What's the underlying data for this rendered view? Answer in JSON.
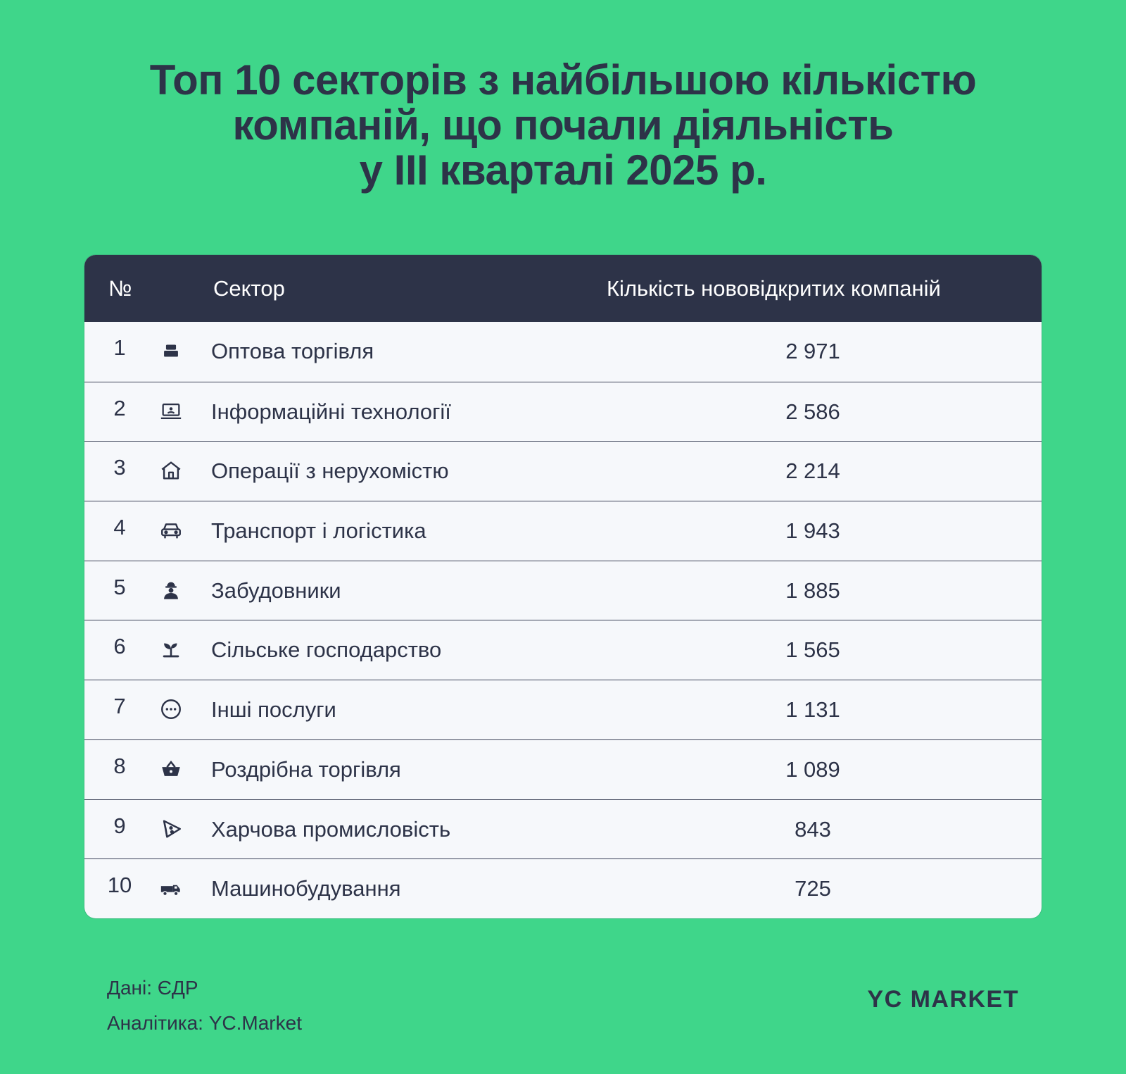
{
  "title_lines": [
    "Топ 10 секторів з найбільшою кількістю",
    "компаній, що почали діяльність",
    "у III кварталі 2025 р."
  ],
  "headers": {
    "num": "№",
    "sector": "Сектор",
    "count": "Кількість нововідкритих компаній"
  },
  "chart_data": {
    "type": "table",
    "title": "Топ 10 секторів з найбільшою кількістю компаній, що почали діяльність у III кварталі 2025 р.",
    "columns": [
      "№",
      "Сектор",
      "Кількість нововідкритих компаній"
    ],
    "rows": [
      {
        "num": "1",
        "icon": "cash-register-icon",
        "sector": "Оптова торгівля",
        "count_text": "2 971",
        "count": 2971
      },
      {
        "num": "2",
        "icon": "laptop-icon",
        "sector": "Інформаційні технології",
        "count_text": "2 586",
        "count": 2586
      },
      {
        "num": "3",
        "icon": "house-icon",
        "sector": "Операції з нерухомістю",
        "count_text": "2 214",
        "count": 2214
      },
      {
        "num": "4",
        "icon": "car-icon",
        "sector": "Транспорт і логістика",
        "count_text": "1 943",
        "count": 1943
      },
      {
        "num": "5",
        "icon": "builder-icon",
        "sector": "Забудовники",
        "count_text": "1 885",
        "count": 1885
      },
      {
        "num": "6",
        "icon": "sprout-icon",
        "sector": "Сільське господарство",
        "count_text": "1 565",
        "count": 1565
      },
      {
        "num": "7",
        "icon": "ellipsis-circle-icon",
        "sector": "Інші послуги",
        "count_text": "1 131",
        "count": 1131
      },
      {
        "num": "8",
        "icon": "basket-icon",
        "sector": "Роздрібна торгівля",
        "count_text": "1 089",
        "count": 1089
      },
      {
        "num": "9",
        "icon": "pizza-slice-icon",
        "sector": "Харчова промисловість",
        "count_text": "843",
        "count": 843
      },
      {
        "num": "10",
        "icon": "truck-icon",
        "sector": "Машинобудування",
        "count_text": "725",
        "count": 725
      }
    ]
  },
  "footer": {
    "source": "Дані: ЄДР",
    "analytics": "Аналітика: YC.Market",
    "brand": "YC MARKET"
  },
  "colors": {
    "background": "#3fd68a",
    "header": "#2d3348",
    "table_bg": "#f6f8fb",
    "text": "#2d3348"
  }
}
